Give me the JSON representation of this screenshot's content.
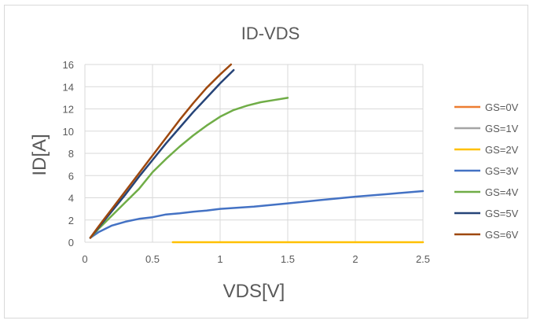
{
  "chart_data": {
    "type": "line",
    "title": "ID-VDS",
    "xlabel": "VDS[V]",
    "ylabel": "ID[A]",
    "xlim": [
      0,
      2.5
    ],
    "ylim": [
      0,
      16
    ],
    "x_ticks": [
      "0",
      "0.5",
      "1",
      "1.5",
      "2",
      "2.5"
    ],
    "y_ticks": [
      "0",
      "2",
      "4",
      "6",
      "8",
      "10",
      "12",
      "14",
      "16"
    ],
    "grid": true,
    "legend": "right",
    "series": [
      {
        "name": "GS=0V",
        "color": "#ed7d31",
        "points": []
      },
      {
        "name": "GS=1V",
        "color": "#a5a5a5",
        "points": []
      },
      {
        "name": "GS=2V",
        "color": "#ffc000",
        "points": [
          [
            0.65,
            0
          ],
          [
            1.0,
            0
          ],
          [
            1.5,
            0
          ],
          [
            2.0,
            0
          ],
          [
            2.5,
            0
          ]
        ]
      },
      {
        "name": "GS=3V",
        "color": "#4472c4",
        "points": [
          [
            0.04,
            0.4
          ],
          [
            0.1,
            0.9
          ],
          [
            0.2,
            1.5
          ],
          [
            0.3,
            1.85
          ],
          [
            0.4,
            2.1
          ],
          [
            0.5,
            2.25
          ],
          [
            0.6,
            2.5
          ],
          [
            0.7,
            2.6
          ],
          [
            0.8,
            2.75
          ],
          [
            0.9,
            2.85
          ],
          [
            1.0,
            3.0
          ],
          [
            1.25,
            3.2
          ],
          [
            1.5,
            3.5
          ],
          [
            1.75,
            3.8
          ],
          [
            2.0,
            4.1
          ],
          [
            2.25,
            4.35
          ],
          [
            2.5,
            4.6
          ]
        ]
      },
      {
        "name": "GS=4V",
        "color": "#70ad47",
        "points": [
          [
            0.04,
            0.4
          ],
          [
            0.1,
            1.2
          ],
          [
            0.2,
            2.4
          ],
          [
            0.3,
            3.6
          ],
          [
            0.4,
            4.8
          ],
          [
            0.5,
            6.3
          ],
          [
            0.6,
            7.5
          ],
          [
            0.7,
            8.6
          ],
          [
            0.8,
            9.6
          ],
          [
            0.9,
            10.5
          ],
          [
            1.0,
            11.3
          ],
          [
            1.1,
            11.9
          ],
          [
            1.2,
            12.3
          ],
          [
            1.3,
            12.6
          ],
          [
            1.4,
            12.8
          ],
          [
            1.5,
            13.0
          ]
        ]
      },
      {
        "name": "GS=5V",
        "color": "#264478",
        "points": [
          [
            0.04,
            0.4
          ],
          [
            0.1,
            1.3
          ],
          [
            0.2,
            2.8
          ],
          [
            0.3,
            4.3
          ],
          [
            0.4,
            5.9
          ],
          [
            0.5,
            7.4
          ],
          [
            0.6,
            8.9
          ],
          [
            0.7,
            10.3
          ],
          [
            0.8,
            11.7
          ],
          [
            0.9,
            13.0
          ],
          [
            1.0,
            14.3
          ],
          [
            1.1,
            15.5
          ]
        ]
      },
      {
        "name": "GS=6V",
        "color": "#9e480e",
        "points": [
          [
            0.04,
            0.4
          ],
          [
            0.1,
            1.4
          ],
          [
            0.2,
            3.0
          ],
          [
            0.3,
            4.6
          ],
          [
            0.4,
            6.2
          ],
          [
            0.5,
            7.8
          ],
          [
            0.6,
            9.4
          ],
          [
            0.7,
            11.0
          ],
          [
            0.8,
            12.5
          ],
          [
            0.9,
            13.9
          ],
          [
            1.0,
            15.1
          ],
          [
            1.08,
            16.0
          ]
        ]
      }
    ]
  }
}
